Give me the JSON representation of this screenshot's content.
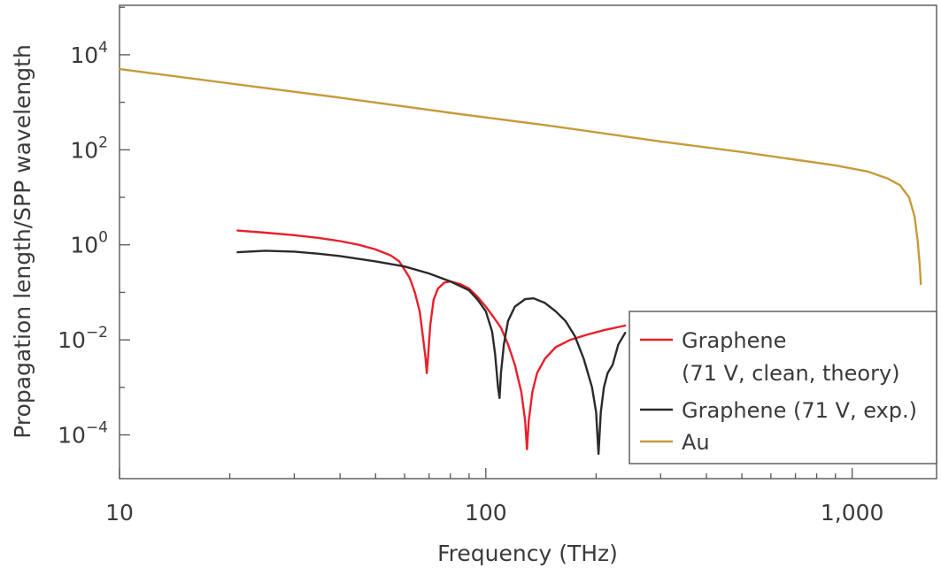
{
  "chart_data": {
    "type": "line",
    "title": "",
    "xlabel": "Frequency (THz)",
    "ylabel": "Propagation length/SPP wavelength",
    "x_scale": "log",
    "y_scale": "log",
    "xlim": [
      10,
      1700
    ],
    "ylim": [
      1.2e-05,
      110000
    ],
    "x_ticks": [
      {
        "value": 10,
        "label": "10"
      },
      {
        "value": 100,
        "label": "100"
      },
      {
        "value": 1000,
        "label": "1,000"
      }
    ],
    "y_ticks": [
      {
        "value": 0.0001,
        "base": "10",
        "exp": "−4"
      },
      {
        "value": 0.01,
        "base": "10",
        "exp": "−2"
      },
      {
        "value": 1,
        "base": "10",
        "exp": "0"
      },
      {
        "value": 100,
        "base": "10",
        "exp": "2"
      },
      {
        "value": 10000,
        "base": "10",
        "exp": "4"
      }
    ],
    "grid": false,
    "legend_position": "bottom-right",
    "series": [
      {
        "name": "Graphene",
        "name_line2": "(71 V, clean, theory)",
        "color": "#e8202a",
        "points": [
          [
            21,
            2.0
          ],
          [
            25,
            1.8
          ],
          [
            30,
            1.6
          ],
          [
            35,
            1.4
          ],
          [
            40,
            1.2
          ],
          [
            45,
            1.0
          ],
          [
            50,
            0.8
          ],
          [
            55,
            0.6
          ],
          [
            58,
            0.45
          ],
          [
            60,
            0.3
          ],
          [
            62,
            0.2
          ],
          [
            64,
            0.1
          ],
          [
            66,
            0.04
          ],
          [
            67.5,
            0.01
          ],
          [
            68.5,
            0.004
          ],
          [
            69,
            0.002
          ],
          [
            69.5,
            0.004
          ],
          [
            70.5,
            0.02
          ],
          [
            72,
            0.07
          ],
          [
            74,
            0.12
          ],
          [
            77,
            0.16
          ],
          [
            80,
            0.17
          ],
          [
            85,
            0.15
          ],
          [
            90,
            0.12
          ],
          [
            95,
            0.08
          ],
          [
            100,
            0.05
          ],
          [
            105,
            0.03
          ],
          [
            110,
            0.018
          ],
          [
            115,
            0.008
          ],
          [
            120,
            0.003
          ],
          [
            125,
            0.0008
          ],
          [
            128,
            0.0002
          ],
          [
            129.5,
            5e-05
          ],
          [
            131,
            0.0002
          ],
          [
            134,
            0.0008
          ],
          [
            138,
            0.002
          ],
          [
            145,
            0.004
          ],
          [
            155,
            0.007
          ],
          [
            170,
            0.01
          ],
          [
            190,
            0.013
          ],
          [
            210,
            0.016
          ],
          [
            240,
            0.02
          ]
        ]
      },
      {
        "name": "Graphene (71 V, exp.)",
        "color": "#2a2a2a",
        "points": [
          [
            21,
            0.7
          ],
          [
            25,
            0.75
          ],
          [
            30,
            0.72
          ],
          [
            35,
            0.65
          ],
          [
            40,
            0.58
          ],
          [
            50,
            0.45
          ],
          [
            60,
            0.35
          ],
          [
            70,
            0.25
          ],
          [
            80,
            0.17
          ],
          [
            90,
            0.11
          ],
          [
            95,
            0.07
          ],
          [
            100,
            0.04
          ],
          [
            104,
            0.015
          ],
          [
            106,
            0.005
          ],
          [
            108,
            0.001
          ],
          [
            109,
            0.0006
          ],
          [
            110,
            0.002
          ],
          [
            112,
            0.008
          ],
          [
            115,
            0.025
          ],
          [
            120,
            0.05
          ],
          [
            128,
            0.072
          ],
          [
            135,
            0.075
          ],
          [
            145,
            0.06
          ],
          [
            155,
            0.04
          ],
          [
            165,
            0.025
          ],
          [
            175,
            0.012
          ],
          [
            185,
            0.004
          ],
          [
            195,
            0.001
          ],
          [
            200,
            0.0003
          ],
          [
            203,
            4e-05
          ],
          [
            206,
            0.0003
          ],
          [
            210,
            0.001
          ],
          [
            215,
            0.002
          ],
          [
            222,
            0.003
          ],
          [
            230,
            0.008
          ],
          [
            240,
            0.014
          ]
        ]
      },
      {
        "name": "Au",
        "color": "#c79a3a",
        "points": [
          [
            10,
            5000
          ],
          [
            20,
            2500
          ],
          [
            40,
            1250
          ],
          [
            80,
            600
          ],
          [
            150,
            320
          ],
          [
            300,
            150
          ],
          [
            500,
            90
          ],
          [
            700,
            62
          ],
          [
            900,
            47
          ],
          [
            1100,
            35
          ],
          [
            1250,
            25
          ],
          [
            1350,
            18
          ],
          [
            1430,
            10
          ],
          [
            1480,
            4
          ],
          [
            1510,
            1.2
          ],
          [
            1530,
            0.35
          ],
          [
            1540,
            0.15
          ]
        ]
      }
    ]
  }
}
